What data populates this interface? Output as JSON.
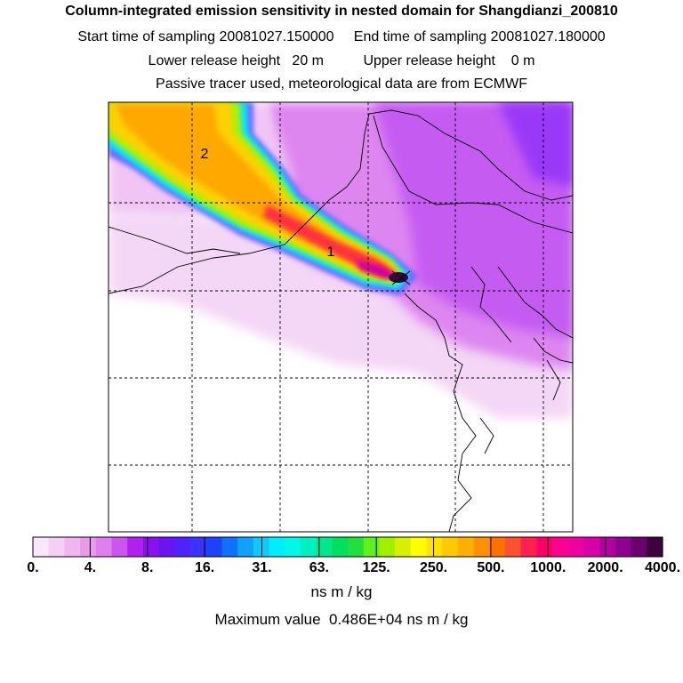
{
  "header": {
    "title": "Column-integrated emission sensitivity in nested domain for Shangdianzi_200810",
    "sampling_line": "Start time of sampling 20081027.150000     End time of sampling 20081027.180000",
    "release_line": "Lower release height   20 m          Upper release height    0 m",
    "tracer_line": "Passive tracer used, meteorological data are from ECMWF"
  },
  "map": {
    "labels": [
      "2",
      "1"
    ],
    "release_site_marker": "release-site-cross-icon"
  },
  "colorbar": {
    "tick_labels": [
      "0.",
      "4.",
      "8.",
      "16.",
      "31.",
      "63.",
      "125.",
      "250.",
      "500.",
      "1000.",
      "2000.",
      "4000."
    ],
    "colors": [
      "#ffffff",
      "#fae6fa",
      "#f5cff5",
      "#f0b6f0",
      "#e89ce8",
      "#dd80ee",
      "#cc55f0",
      "#b020f0",
      "#8a10f0",
      "#6a14f4",
      "#5020ff",
      "#3c32ff",
      "#2040ff",
      "#1070ff",
      "#10a0ff",
      "#10c8ff",
      "#00ecff",
      "#00f8e8",
      "#00f0c0",
      "#00e890",
      "#00e060",
      "#20e040",
      "#60f020",
      "#a0f000",
      "#d8f000",
      "#ffff00",
      "#ffe000",
      "#ffc800",
      "#ffb000",
      "#ff9000",
      "#ff7000",
      "#ff5030",
      "#ff2050",
      "#ff0066",
      "#ff0090",
      "#f000a0",
      "#d800a8",
      "#b400a0",
      "#900090",
      "#6a0070",
      "#400040"
    ],
    "units": "ns m / kg",
    "max_value_text": "Maximum value  0.486E+04 ns m / kg"
  }
}
